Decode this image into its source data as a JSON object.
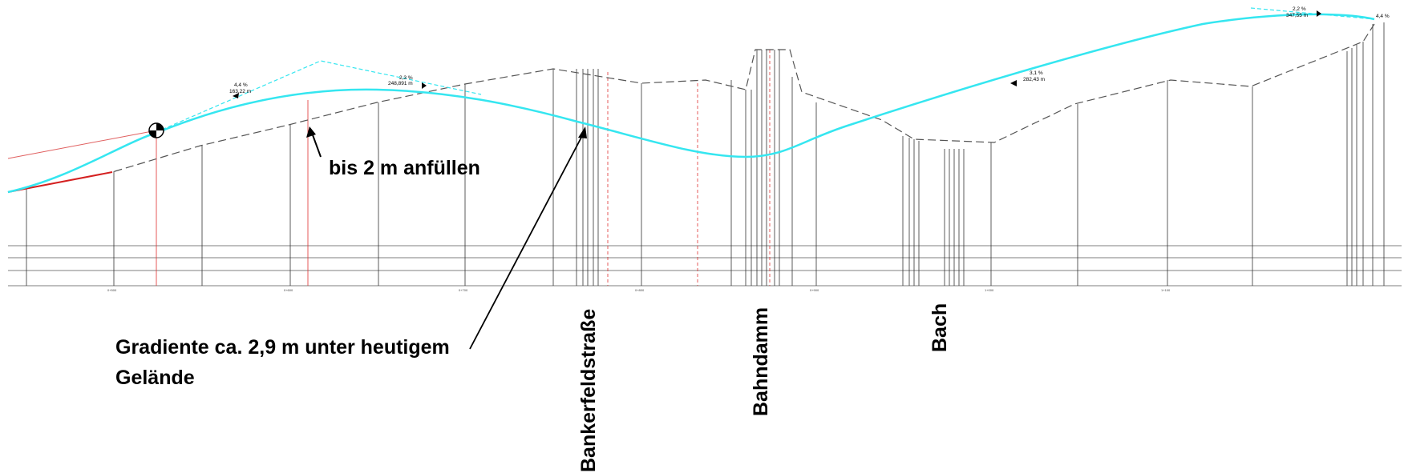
{
  "annotations": {
    "fill": "bis 2 m anfüllen",
    "gradient_line1": "Gradiente ca. 2,9 m unter heutigem",
    "gradient_line2": "Gelände",
    "road": "Bankerfeldstraße",
    "rail": "Bahndamm",
    "stream": "Bach"
  },
  "slopes": [
    {
      "percent": "4,4 %",
      "length": "163,22 m"
    },
    {
      "percent": "2,3 %",
      "length": "248,891 m"
    },
    {
      "percent": "3,1 %",
      "length": "282,43 m"
    },
    {
      "percent": "2,2 %",
      "length": "347,55 m"
    },
    {
      "percent": "4,4 %",
      "length": ""
    }
  ],
  "stations": [
    "0+500",
    "0+600",
    "0+700",
    "0+800",
    "0+900",
    "1+000",
    "1+100"
  ],
  "colors": {
    "gradient": "#35e6f0",
    "terrain": "#555555",
    "red": "#e02020",
    "text": "#000000"
  }
}
